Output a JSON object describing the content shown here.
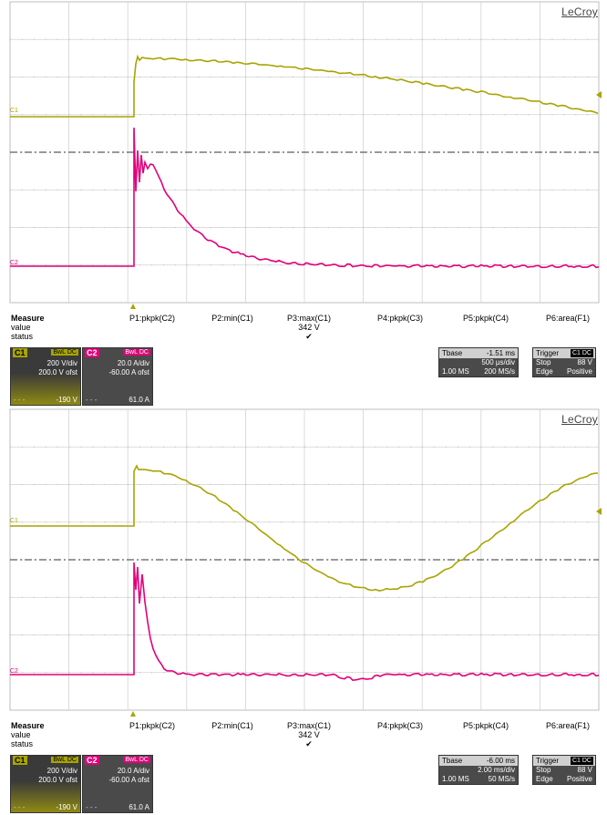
{
  "brand": "LeCroy",
  "colors": {
    "ch1": "#a8a400",
    "ch2": "#e2007a",
    "grid": "#c8c8c8",
    "panel_bg": "#4a4a4a"
  },
  "screens": [
    {
      "channel_markers": {
        "c1": "C1",
        "c2": "C2"
      },
      "measure": {
        "title": "Measure",
        "row_value": "value",
        "row_status": "status",
        "params": [
          "P1:pkpk(C2)",
          "P2:min(C1)",
          "P3:max(C1)",
          "P4:pkpk(C3)",
          "P5:pkpk(C4)",
          "P6:area(F1)"
        ],
        "p3_value": "342 V",
        "p3_status": "✔"
      },
      "ch1_box": {
        "name": "C1",
        "bw": "BwL",
        "coupling": "DC",
        "vdiv": "200 V/div",
        "offset": "200.0 V ofst",
        "bottom_value": "-190 V"
      },
      "ch2_box": {
        "name": "C2",
        "bw": "BwL",
        "coupling": "DC",
        "vdiv": "20.0 A/div",
        "offset": "-60.00 A ofst",
        "bottom_value": "61.0 A"
      },
      "timebase": {
        "label": "Tbase",
        "delay": "-1.51 ms",
        "tdiv": "500 µs/div",
        "samples": "1.00 MS",
        "rate": "200 MS/s"
      },
      "trigger": {
        "label": "Trigger",
        "source": "C1 DC",
        "mode": "Stop",
        "level": "88 V",
        "type": "Edge",
        "slope": "Positive"
      }
    },
    {
      "channel_markers": {
        "c1": "C1",
        "c2": "C2"
      },
      "measure": {
        "title": "Measure",
        "row_value": "value",
        "row_status": "status",
        "params": [
          "P1:pkpk(C2)",
          "P2:min(C1)",
          "P3:max(C1)",
          "P4:pkpk(C3)",
          "P5:pkpk(C4)",
          "P6:area(F1)"
        ],
        "p3_value": "342 V",
        "p3_status": "✔"
      },
      "ch1_box": {
        "name": "C1",
        "bw": "BwL",
        "coupling": "DC",
        "vdiv": "200 V/div",
        "offset": "200.0 V ofst",
        "bottom_value": "-190 V"
      },
      "ch2_box": {
        "name": "C2",
        "bw": "BwL",
        "coupling": "DC",
        "vdiv": "20.0 A/div",
        "offset": "-60.00 A ofst",
        "bottom_value": "61.0 A"
      },
      "timebase": {
        "label": "Tbase",
        "delay": "-6.00 ms",
        "tdiv": "2.00 ms/div",
        "samples": "1.00 MS",
        "rate": "50 MS/s"
      },
      "trigger": {
        "label": "Trigger",
        "source": "C1 DC",
        "mode": "Stop",
        "level": "88 V",
        "type": "Edge",
        "slope": "Positive"
      }
    }
  ]
}
